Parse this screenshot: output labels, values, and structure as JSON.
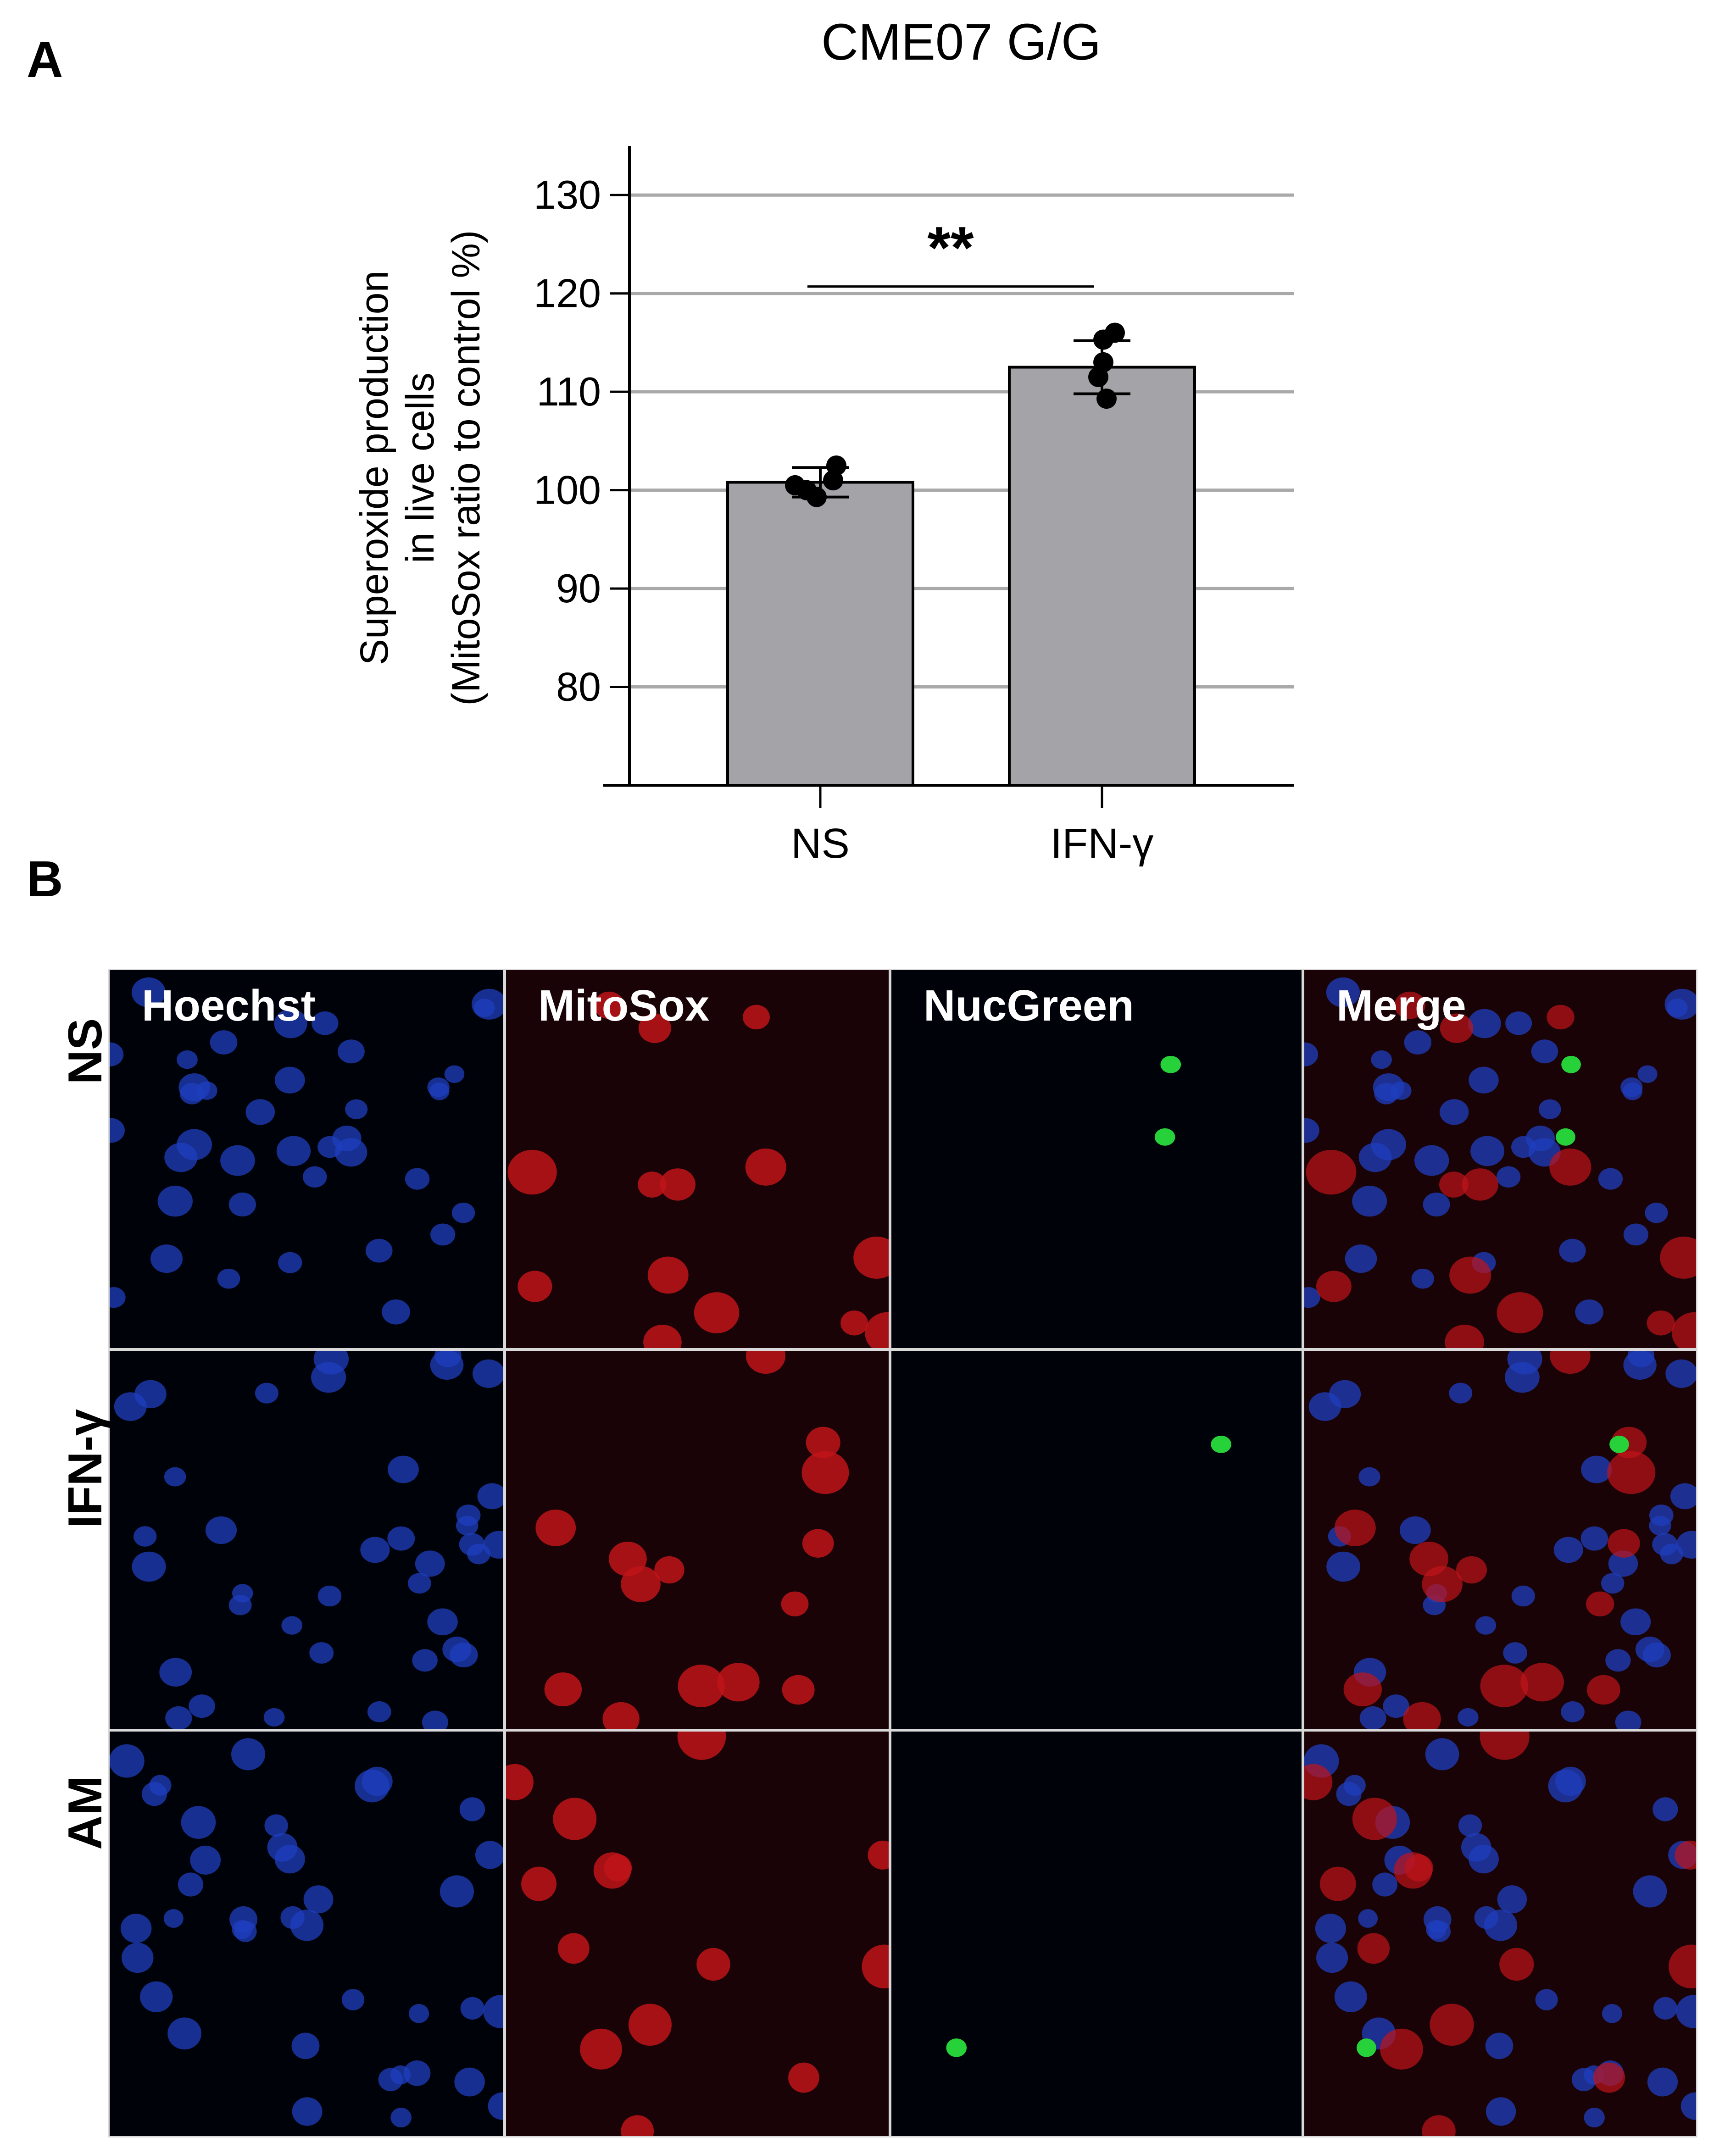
{
  "panels": {
    "a_label": "A",
    "b_label": "B"
  },
  "chart_data": {
    "type": "bar",
    "title": "CME07 G/G",
    "ylabel_lines": [
      "Superoxide production",
      "in live cells",
      "(MitoSox  ratio to control %)"
    ],
    "xlabel": "",
    "categories": [
      "NS",
      "IFN-γ"
    ],
    "values": [
      100.8,
      112.5
    ],
    "error": [
      1.5,
      2.7
    ],
    "points": [
      [
        100.5,
        101.0,
        102.5,
        99.3,
        100.0
      ],
      [
        116.0,
        115.3,
        113.0,
        111.5,
        109.3
      ]
    ],
    "ylim": [
      70,
      135
    ],
    "yticks": [
      80,
      90,
      100,
      110,
      120,
      130
    ],
    "grid": true,
    "significance": {
      "label": "**",
      "from": 0,
      "to": 1,
      "y": 120.7
    },
    "colors": {
      "bar": "#a3a3a8",
      "grid": "#a9a9a9",
      "point": "#000000"
    }
  },
  "micrographs": {
    "columns": [
      "Hoechst",
      "MitoSox",
      "NucGreen",
      "Merge"
    ],
    "rows": [
      "NS",
      "IFN-γ",
      "AM"
    ],
    "stain_colors": {
      "Hoechst": "#1f3fbf",
      "MitoSox": "#c0141a",
      "NucGreen": "#27d13a"
    }
  }
}
